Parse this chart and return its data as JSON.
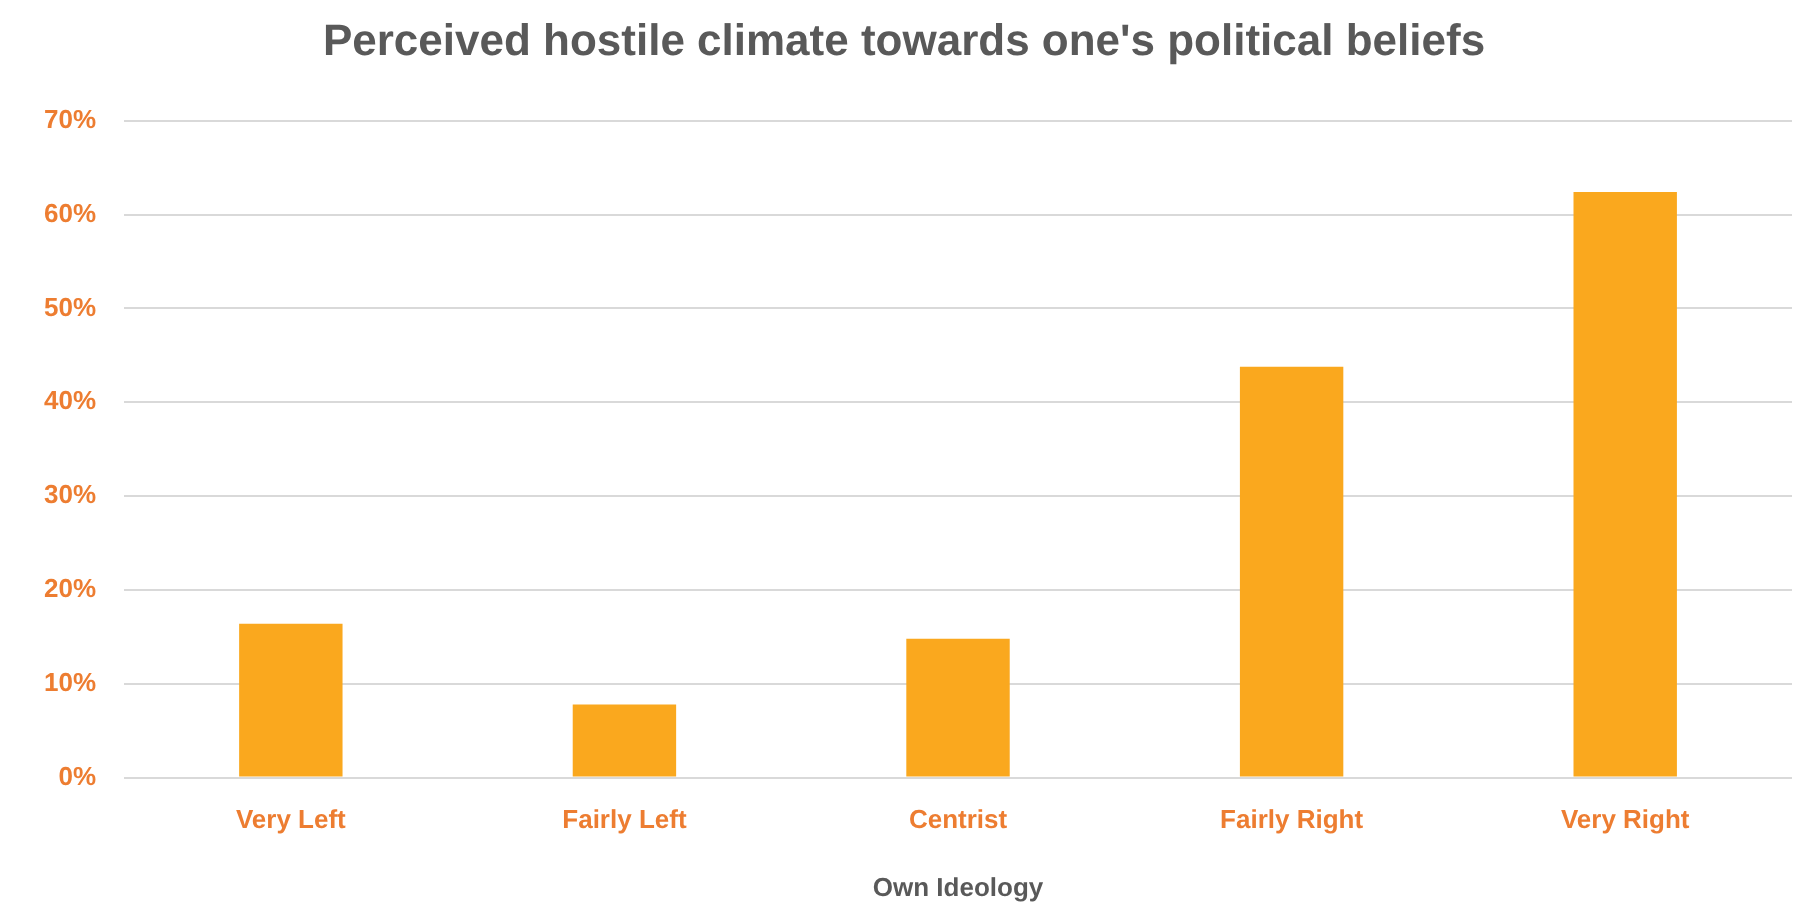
{
  "chart_data": {
    "type": "bar",
    "title": "Perceived hostile climate towards one's political beliefs",
    "xlabel": "Own Ideology",
    "categories": [
      "Very Left",
      "Fairly Left",
      "Centrist",
      "Fairly Right",
      "Very Right"
    ],
    "values": [
      16.4,
      7.8,
      14.8,
      43.8,
      62.4
    ],
    "color": "#faa81e",
    "ylim": [
      0,
      70
    ],
    "yticks": [
      {
        "value": 0,
        "label": "0%"
      },
      {
        "value": 10,
        "label": "10%"
      },
      {
        "value": 20,
        "label": "20%"
      },
      {
        "value": 30,
        "label": "30%"
      },
      {
        "value": 40,
        "label": "40%"
      },
      {
        "value": 50,
        "label": "50%"
      },
      {
        "value": 60,
        "label": "60%"
      },
      {
        "value": 70,
        "label": "70%"
      }
    ],
    "grid": "y"
  }
}
